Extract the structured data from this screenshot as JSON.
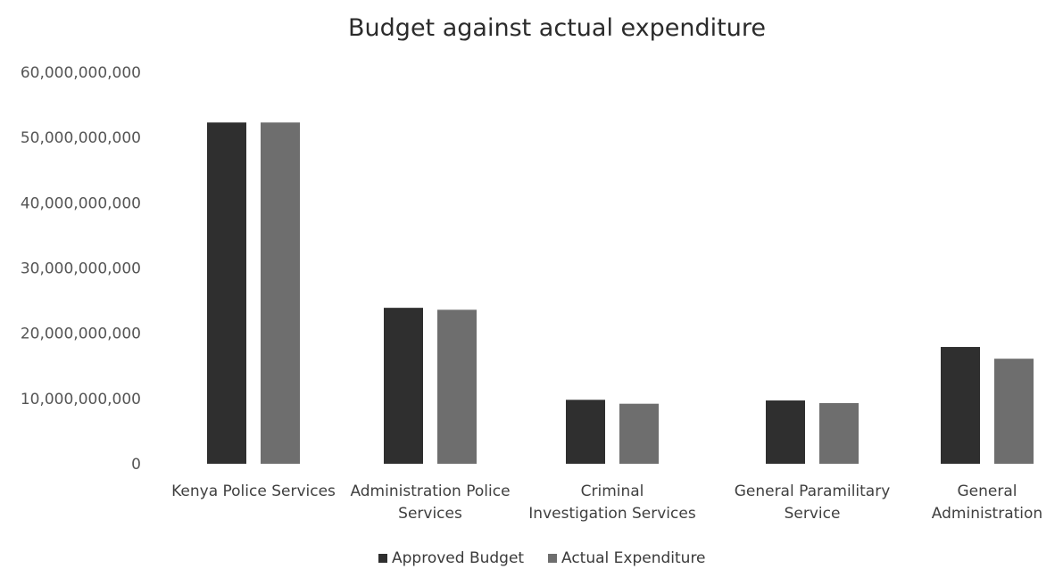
{
  "chart_data": {
    "type": "bar",
    "title": "Budget against actual expenditure",
    "xlabel": "",
    "ylabel": "",
    "ylim": [
      0,
      60000000000
    ],
    "yticks": [
      "0",
      "10,000,000,000",
      "20,000,000,000",
      "30,000,000,000",
      "40,000,000,000",
      "50,000,000,000",
      "60,000,000,000"
    ],
    "ytick_values": [
      0,
      10000000000,
      20000000000,
      30000000000,
      40000000000,
      50000000000,
      60000000000
    ],
    "grid": false,
    "legend_position": "bottom",
    "categories": [
      [
        "Kenya Police Services"
      ],
      [
        "Administration Police",
        "Services"
      ],
      [
        "Criminal",
        "Investigation Services"
      ],
      [
        "General Paramilitary",
        "Service"
      ],
      [
        "General",
        "Administration"
      ]
    ],
    "series": [
      {
        "name": "Approved Budget",
        "color": "#2f2f2f",
        "values": [
          52300000000,
          23900000000,
          9800000000,
          9700000000,
          17900000000
        ]
      },
      {
        "name": "Actual Expenditure",
        "color": "#6e6e6e",
        "values": [
          52300000000,
          23600000000,
          9200000000,
          9300000000,
          16100000000
        ]
      }
    ]
  }
}
